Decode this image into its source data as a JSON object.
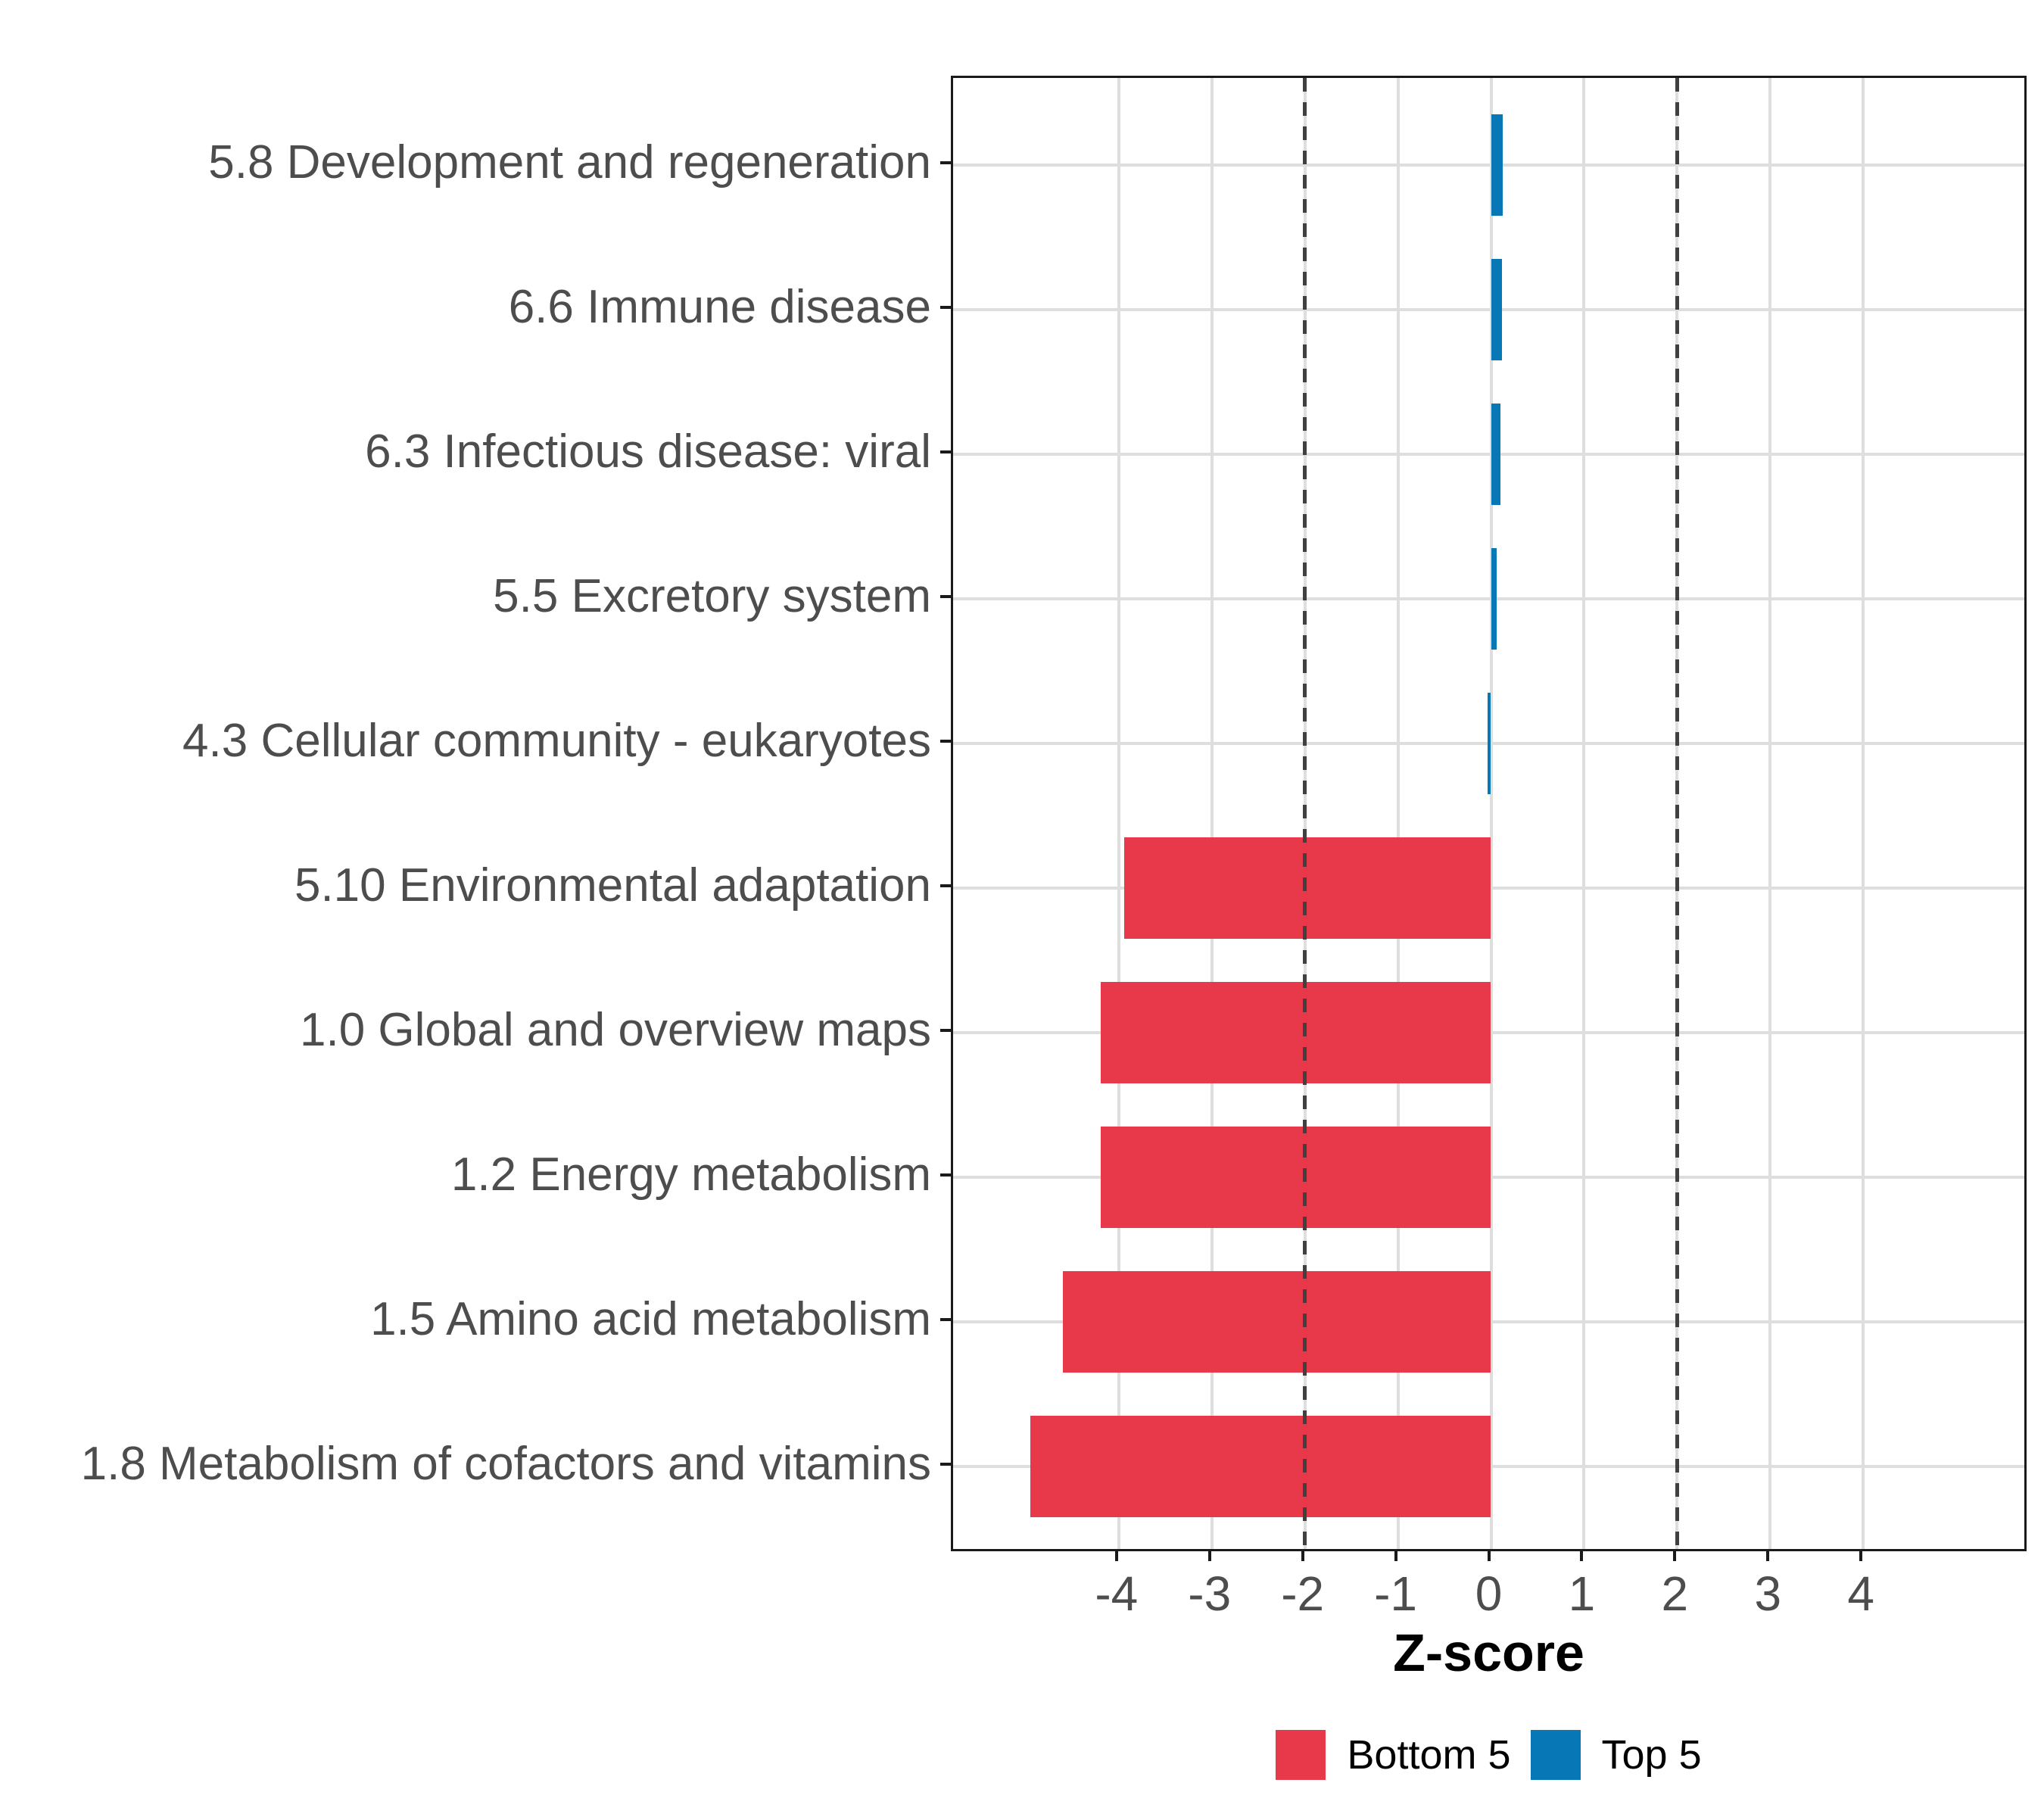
{
  "chart_data": {
    "type": "bar",
    "orientation": "horizontal",
    "title": "",
    "xlabel": "Z-score",
    "ylabel": "",
    "xlim": [
      -5.78,
      5.78
    ],
    "x_tick_values": [
      -4,
      -3,
      -2,
      -1,
      0,
      1,
      2,
      3,
      4
    ],
    "grid": "major-only",
    "legend_position": "bottom",
    "reference_lines": {
      "values": [
        -2,
        2
      ],
      "style": "dashed",
      "color": "#404040"
    },
    "categories": [
      "5.8 Development and regeneration",
      "6.6 Immune disease",
      "6.3 Infectious disease: viral",
      "5.5 Excretory system",
      "4.3 Cellular community - eukaryotes",
      "5.10 Environmental adaptation",
      "1.0 Global and overview maps",
      "1.2 Energy metabolism",
      "1.5 Amino acid metabolism",
      "1.8 Metabolism of cofactors and vitamins"
    ],
    "bars": [
      {
        "category": "5.8 Development and regeneration",
        "value": 0.13,
        "group": "Top 5"
      },
      {
        "category": "6.6 Immune disease",
        "value": 0.12,
        "group": "Top 5"
      },
      {
        "category": "6.3 Infectious disease: viral",
        "value": 0.1,
        "group": "Top 5"
      },
      {
        "category": "5.5 Excretory system",
        "value": 0.06,
        "group": "Top 5"
      },
      {
        "category": "4.3 Cellular community - eukaryotes",
        "value": -0.04,
        "group": "Top 5"
      },
      {
        "category": "5.10 Environmental adaptation",
        "value": -3.94,
        "group": "Bottom 5"
      },
      {
        "category": "1.0 Global and overview maps",
        "value": -4.19,
        "group": "Bottom 5"
      },
      {
        "category": "1.2 Energy metabolism",
        "value": -4.19,
        "group": "Bottom 5"
      },
      {
        "category": "1.5 Amino acid metabolism",
        "value": -4.6,
        "group": "Bottom 5"
      },
      {
        "category": "1.8 Metabolism of cofactors and vitamins",
        "value": -4.95,
        "group": "Bottom 5"
      }
    ],
    "legend": [
      {
        "label": "Bottom 5",
        "color": "#E8394A"
      },
      {
        "label": "Top 5",
        "color": "#0877B5"
      }
    ]
  },
  "colors": {
    "bottom5": "#E8394A",
    "top5": "#0877B5",
    "gridline": "#DEDEDE",
    "panel_border": "#1A1A1A",
    "dashed_line": "#404040",
    "axis_text": "#4D4D4D",
    "title_text": "#000000",
    "background": "#FFFFFF"
  }
}
